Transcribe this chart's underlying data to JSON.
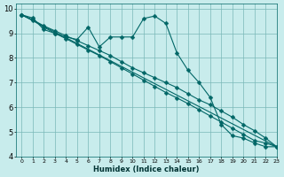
{
  "xlabel": "Humidex (Indice chaleur)",
  "ylabel": "",
  "bg_color": "#c8ecec",
  "grid_color": "#7ab8b8",
  "line_color": "#006666",
  "xlim": [
    -0.5,
    23
  ],
  "ylim": [
    4,
    10.2
  ],
  "yticks": [
    4,
    5,
    6,
    7,
    8,
    9,
    10
  ],
  "xtick_labels": [
    "0",
    "1",
    "2",
    "3",
    "4",
    "5",
    "6",
    "7",
    "8",
    "9",
    "10",
    "11",
    "12",
    "13",
    "14",
    "15",
    "16",
    "17",
    "18",
    "19",
    "20",
    "21",
    "22",
    "23"
  ],
  "lines": [
    {
      "x": [
        0,
        1,
        2,
        3,
        4,
        5,
        6,
        7,
        8,
        9,
        10,
        11,
        12,
        13,
        14,
        15,
        16,
        17,
        18,
        19,
        20,
        21,
        22,
        23
      ],
      "y": [
        9.75,
        9.62,
        9.15,
        9.0,
        8.85,
        8.75,
        9.25,
        8.45,
        8.85,
        8.85,
        8.85,
        9.6,
        9.7,
        9.4,
        8.2,
        7.5,
        7.0,
        6.4,
        5.3,
        4.85,
        4.75,
        4.55,
        4.4,
        4.4
      ],
      "marker": "D",
      "markersize": 2.5,
      "has_markers": true
    },
    {
      "x": [
        0,
        1,
        2,
        3,
        4,
        5,
        6,
        7,
        8,
        9,
        10,
        11,
        12,
        13,
        14,
        15,
        16,
        17,
        18,
        19,
        20,
        21,
        22,
        23
      ],
      "y": [
        9.75,
        9.55,
        9.3,
        9.1,
        8.9,
        8.7,
        8.5,
        8.3,
        8.1,
        7.85,
        7.6,
        7.4,
        7.2,
        7.0,
        6.8,
        6.55,
        6.3,
        6.1,
        5.85,
        5.6,
        5.3,
        5.05,
        4.75,
        4.4
      ],
      "marker": "D",
      "markersize": 2.5,
      "has_markers": true
    },
    {
      "x": [
        0,
        1,
        2,
        3,
        4,
        5,
        6,
        7,
        8,
        9,
        10,
        11,
        12,
        13,
        14,
        15,
        16,
        17,
        18,
        19,
        20,
        21,
        22,
        23
      ],
      "y": [
        9.75,
        9.52,
        9.25,
        9.0,
        8.78,
        8.55,
        8.32,
        8.1,
        7.85,
        7.6,
        7.35,
        7.1,
        6.85,
        6.6,
        6.38,
        6.15,
        5.9,
        5.65,
        5.4,
        5.15,
        4.9,
        4.65,
        4.55,
        4.4
      ],
      "marker": "D",
      "markersize": 2.5,
      "has_markers": true
    },
    {
      "x": [
        0,
        23
      ],
      "y": [
        9.75,
        4.4
      ],
      "marker": null,
      "markersize": 0,
      "has_markers": false
    }
  ]
}
